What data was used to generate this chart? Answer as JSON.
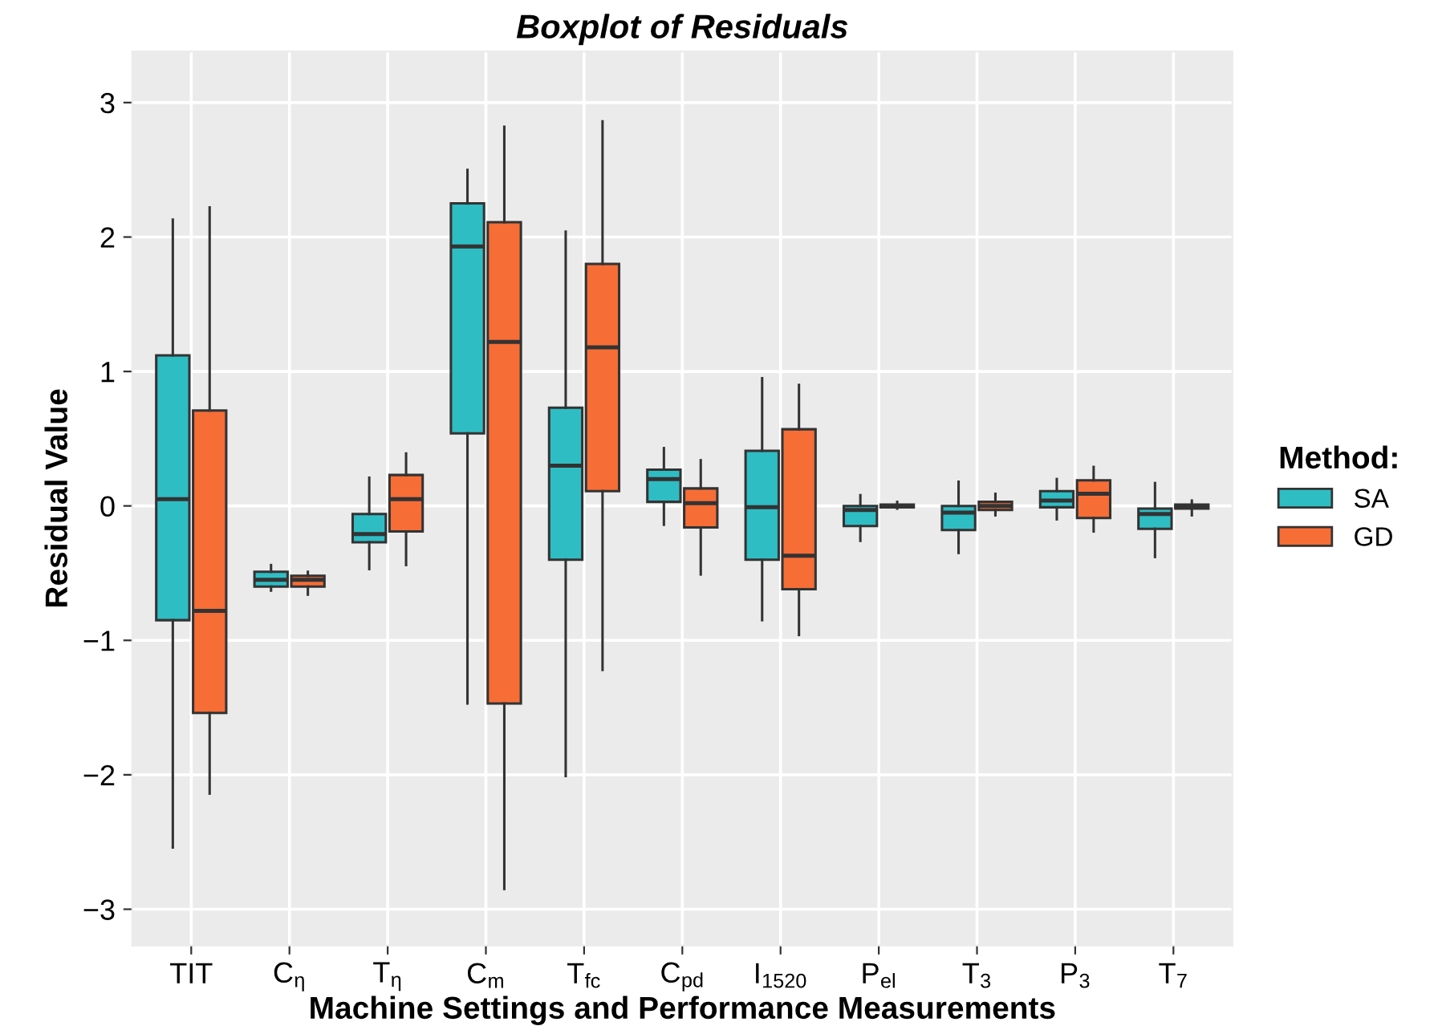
{
  "chart_data": {
    "type": "box",
    "title": "Boxplot of Residuals",
    "xlabel": "Machine Settings and Performance Measurements",
    "ylabel": "Residual Value",
    "legend_title": "Method:",
    "legend": "right",
    "grid": true,
    "categories": [
      "TIT",
      "C$_{η}$",
      "T$_{η}$",
      "C$_{m}$",
      "T$_{fc}$",
      "C$_{pd}$",
      "I$_{1520}$",
      "P$_{el}$",
      "T$_{3}$",
      "P$_{3}$",
      "T$_{7}$"
    ],
    "ylim": [
      -3.27,
      3.38
    ],
    "yticks": [
      {
        "value": -3,
        "label": "−3"
      },
      {
        "value": -2,
        "label": "−2"
      },
      {
        "value": -1,
        "label": "−1"
      },
      0,
      1,
      2,
      3
    ],
    "series": [
      {
        "name": "SA",
        "color": "#2fbdc4",
        "boxes": [
          {
            "low": -2.54,
            "q1": -0.85,
            "median": 0.05,
            "q3": 1.12,
            "high": 2.13
          },
          {
            "low": -0.63,
            "q1": -0.6,
            "median": -0.55,
            "q3": -0.49,
            "high": -0.44
          },
          {
            "low": -0.47,
            "q1": -0.27,
            "median": -0.21,
            "q3": -0.06,
            "high": 0.21
          },
          {
            "low": -1.47,
            "q1": 0.54,
            "median": 1.93,
            "q3": 2.25,
            "high": 2.5
          },
          {
            "low": -2.01,
            "q1": -0.4,
            "median": 0.3,
            "q3": 0.73,
            "high": 2.04
          },
          {
            "low": -0.14,
            "q1": 0.03,
            "median": 0.2,
            "q3": 0.27,
            "high": 0.43
          },
          {
            "low": -0.85,
            "q1": -0.4,
            "median": -0.01,
            "q3": 0.41,
            "high": 0.95
          },
          {
            "low": -0.26,
            "q1": -0.15,
            "median": -0.03,
            "q3": 0.0,
            "high": 0.08
          },
          {
            "low": -0.35,
            "q1": -0.18,
            "median": -0.05,
            "q3": 0.0,
            "high": 0.18
          },
          {
            "low": -0.1,
            "q1": -0.01,
            "median": 0.04,
            "q3": 0.11,
            "high": 0.2
          },
          {
            "low": -0.38,
            "q1": -0.17,
            "median": -0.06,
            "q3": -0.02,
            "high": 0.17
          }
        ]
      },
      {
        "name": "GD",
        "color": "#f66d36",
        "boxes": [
          {
            "low": -2.14,
            "q1": -1.54,
            "median": -0.78,
            "q3": 0.71,
            "high": 2.22
          },
          {
            "low": -0.66,
            "q1": -0.6,
            "median": -0.55,
            "q3": -0.52,
            "high": -0.49
          },
          {
            "low": -0.44,
            "q1": -0.19,
            "median": 0.05,
            "q3": 0.23,
            "high": 0.39
          },
          {
            "low": -2.85,
            "q1": -1.47,
            "median": 1.22,
            "q3": 2.11,
            "high": 2.82
          },
          {
            "low": -1.22,
            "q1": 0.11,
            "median": 1.18,
            "q3": 1.8,
            "high": 2.86
          },
          {
            "low": -0.51,
            "q1": -0.16,
            "median": 0.02,
            "q3": 0.13,
            "high": 0.34
          },
          {
            "low": -0.96,
            "q1": -0.62,
            "median": -0.37,
            "q3": 0.57,
            "high": 0.9
          },
          {
            "low": -0.02,
            "q1": -0.01,
            "median": 0.0,
            "q3": 0.01,
            "high": 0.03
          },
          {
            "low": -0.07,
            "q1": -0.03,
            "median": 0.0,
            "q3": 0.03,
            "high": 0.09
          },
          {
            "low": -0.19,
            "q1": -0.09,
            "median": 0.09,
            "q3": 0.19,
            "high": 0.29
          },
          {
            "low": -0.07,
            "q1": -0.02,
            "median": -0.01,
            "q3": 0.01,
            "high": 0.04
          }
        ]
      }
    ]
  }
}
